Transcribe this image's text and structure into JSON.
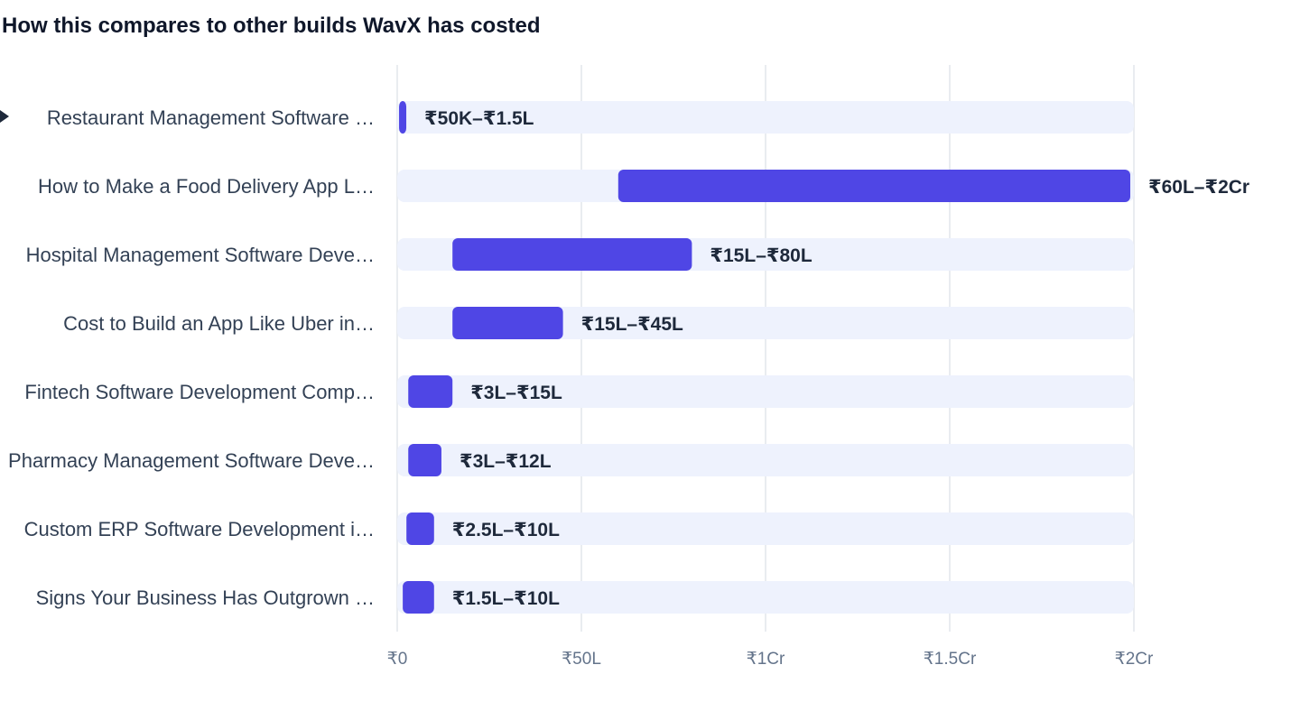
{
  "header": {
    "title": "How this compares to other builds WavX has costed"
  },
  "colors": {
    "bar": "#4f46e5",
    "track": "#eef2fd",
    "grid": "#e2e6ec",
    "label": "#334155",
    "value_label": "#1e293b",
    "tick": "#64748b",
    "marker": "#1e293b"
  },
  "chart_data": {
    "type": "bar",
    "orientation": "horizontal",
    "value_type": "range",
    "title": "How this compares to other builds WavX has costed",
    "xlim": [
      0,
      200
    ],
    "x_unit": "lakh INR",
    "x_ticks": [
      0,
      50,
      100,
      150,
      200
    ],
    "x_tick_labels": [
      "₹0",
      "₹50L",
      "₹1Cr",
      "₹1.5Cr",
      "₹2Cr"
    ],
    "grid": true,
    "current_marker_index": 0,
    "categories": [
      "Restaurant Management Software …",
      "How to Make a Food Delivery App L…",
      "Hospital Management Software Deve…",
      "Cost to Build an App Like Uber in…",
      "Fintech Software Development Comp…",
      "Pharmacy Management Software Deve…",
      "Custom ERP Software Development i…",
      "Signs Your Business Has Outgrown …"
    ],
    "ranges": [
      [
        0.5,
        1.5
      ],
      [
        60,
        200
      ],
      [
        15,
        80
      ],
      [
        15,
        45
      ],
      [
        3,
        15
      ],
      [
        3,
        12
      ],
      [
        2.5,
        10
      ],
      [
        1.5,
        10
      ]
    ],
    "range_labels": [
      "₹50K–₹1.5L",
      "₹60L–₹2Cr",
      "₹15L–₹80L",
      "₹15L–₹45L",
      "₹3L–₹15L",
      "₹3L–₹12L",
      "₹2.5L–₹10L",
      "₹1.5L–₹10L"
    ]
  }
}
